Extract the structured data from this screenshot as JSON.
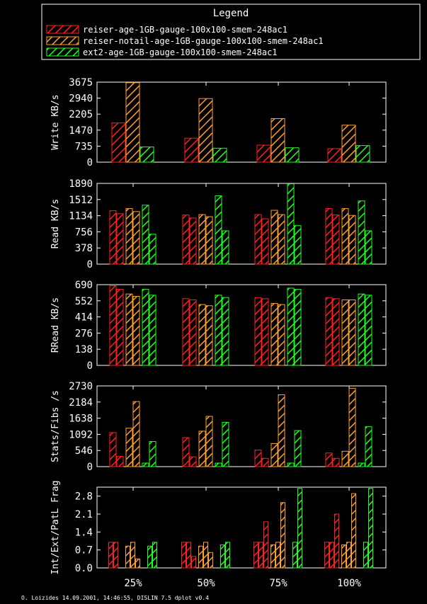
{
  "colors": {
    "background": "#000000",
    "foreground": "#ffffff",
    "red": "#ff2020",
    "orange": "#ff9f30",
    "green": "#20ff20"
  },
  "legend": {
    "title": "Legend",
    "entries": [
      {
        "label": "reiser-age-1GB-gauge-100x100-smem-248ac1",
        "color": "#ff2020"
      },
      {
        "label": "reiser-notail-age-1GB-gauge-100x100-smem-248ac1",
        "color": "#ff9f30"
      },
      {
        "label": "ext2-age-1GB-gauge-100x100-smem-248ac1",
        "color": "#20ff20"
      }
    ]
  },
  "footer": "O. Loizides 14.09.2001, 14:46:55, DISLIN 7.5 dplot v0.4",
  "x_categories": [
    "25%",
    "50%",
    "75%",
    "100%"
  ],
  "chart_data": [
    {
      "type": "bar",
      "ylabel": "Write KB/s",
      "ylim": [
        0,
        3675
      ],
      "yticks": [
        "0",
        "735",
        "1470",
        "2205",
        "2940",
        "3675"
      ],
      "categories": [
        "25%",
        "50%",
        "75%",
        "100%"
      ],
      "series": [
        {
          "name": "reiser-age-1GB-gauge-100x100-smem-248ac1",
          "values": [
            1800,
            1100,
            780,
            620
          ]
        },
        {
          "name": "reiser-notail-age-1GB-gauge-100x100-smem-248ac1",
          "values": [
            3650,
            2920,
            2000,
            1700
          ]
        },
        {
          "name": "ext2-age-1GB-gauge-100x100-smem-248ac1",
          "values": [
            700,
            640,
            660,
            760
          ]
        }
      ]
    },
    {
      "type": "bar",
      "ylabel": "Read KB/s",
      "ylim": [
        0,
        1890
      ],
      "yticks": [
        "0",
        "378",
        "756",
        "1134",
        "1512",
        "1890"
      ],
      "categories": [
        "25%",
        "50%",
        "75%",
        "100%"
      ],
      "bars_per_series": 2,
      "series": [
        {
          "name": "reiser-age-1GB-gauge-100x100-smem-248ac1",
          "values": [
            [
              1250,
              1180
            ],
            [
              1150,
              1080
            ],
            [
              1160,
              1060
            ],
            [
              1300,
              1150
            ]
          ]
        },
        {
          "name": "reiser-notail-age-1GB-gauge-100x100-smem-248ac1",
          "values": [
            [
              1300,
              1230
            ],
            [
              1160,
              1110
            ],
            [
              1260,
              1160
            ],
            [
              1300,
              1140
            ]
          ]
        },
        {
          "name": "ext2-age-1GB-gauge-100x100-smem-248ac1",
          "values": [
            [
              1380,
              700
            ],
            [
              1600,
              780
            ],
            [
              1880,
              900
            ],
            [
              1480,
              780
            ]
          ]
        }
      ]
    },
    {
      "type": "bar",
      "ylabel": "RRead KB/s",
      "ylim": [
        0,
        690
      ],
      "yticks": [
        "0",
        "138",
        "276",
        "414",
        "552",
        "690"
      ],
      "categories": [
        "25%",
        "50%",
        "75%",
        "100%"
      ],
      "bars_per_series": 2,
      "series": [
        {
          "name": "reiser-age-1GB-gauge-100x100-smem-248ac1",
          "values": [
            [
              680,
              650
            ],
            [
              570,
              560
            ],
            [
              580,
              570
            ],
            [
              580,
              570
            ]
          ]
        },
        {
          "name": "reiser-notail-age-1GB-gauge-100x100-smem-248ac1",
          "values": [
            [
              610,
              590
            ],
            [
              520,
              510
            ],
            [
              530,
              520
            ],
            [
              560,
              560
            ]
          ]
        },
        {
          "name": "ext2-age-1GB-gauge-100x100-smem-248ac1",
          "values": [
            [
              650,
              600
            ],
            [
              600,
              580
            ],
            [
              660,
              650
            ],
            [
              610,
              600
            ]
          ]
        }
      ]
    },
    {
      "type": "bar",
      "ylabel": "Stats/Fibs /s",
      "ylim": [
        0,
        2730
      ],
      "yticks": [
        "0",
        "546",
        "1092",
        "1638",
        "2184",
        "2730"
      ],
      "categories": [
        "25%",
        "50%",
        "75%",
        "100%"
      ],
      "bars_per_series": 2,
      "series": [
        {
          "name": "reiser-age-1GB-gauge-100x100-smem-248ac1",
          "values": [
            [
              1150,
              350
            ],
            [
              980,
              330
            ],
            [
              560,
              280
            ],
            [
              460,
              280
            ]
          ]
        },
        {
          "name": "reiser-notail-age-1GB-gauge-100x100-smem-248ac1",
          "values": [
            [
              1300,
              2200
            ],
            [
              1200,
              1700
            ],
            [
              780,
              2430
            ],
            [
              520,
              2650
            ]
          ]
        },
        {
          "name": "ext2-age-1GB-gauge-100x100-smem-248ac1",
          "values": [
            [
              120,
              850
            ],
            [
              120,
              1500
            ],
            [
              120,
              1220
            ],
            [
              120,
              1350
            ]
          ]
        }
      ]
    },
    {
      "type": "bar",
      "ylabel": "Int/Ext/PatL Frag",
      "ylim": [
        0,
        3.15
      ],
      "yticks": [
        "0.0",
        "0.7",
        "1.4",
        "2.1",
        "2.8"
      ],
      "categories": [
        "25%",
        "50%",
        "75%",
        "100%"
      ],
      "bars_per_series": 3,
      "series": [
        {
          "name": "reiser-age-1GB-gauge-100x100-smem-248ac1",
          "values": [
            [
              1.0,
              1.0,
              0.0
            ],
            [
              1.0,
              1.0,
              0.45
            ],
            [
              1.0,
              1.0,
              1.8
            ],
            [
              1.0,
              1.0,
              2.1
            ]
          ]
        },
        {
          "name": "reiser-notail-age-1GB-gauge-100x100-smem-248ac1",
          "values": [
            [
              0.85,
              1.0,
              0.35
            ],
            [
              0.85,
              1.0,
              0.6
            ],
            [
              0.9,
              1.0,
              2.55
            ],
            [
              0.9,
              1.0,
              2.9
            ]
          ]
        },
        {
          "name": "ext2-age-1GB-gauge-100x100-smem-248ac1",
          "values": [
            [
              0.0,
              0.85,
              1.0
            ],
            [
              0.0,
              0.9,
              1.0
            ],
            [
              0.0,
              1.0,
              3.1
            ],
            [
              0.0,
              1.0,
              3.1
            ]
          ]
        }
      ]
    }
  ]
}
